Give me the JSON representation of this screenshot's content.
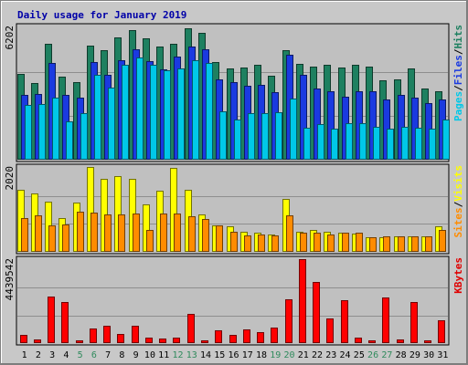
{
  "chart_data": {
    "type": "bar",
    "title": "Daily usage for January 2019",
    "categories": [
      "1",
      "2",
      "3",
      "4",
      "5",
      "6",
      "7",
      "8",
      "9",
      "10",
      "11",
      "12",
      "13",
      "14",
      "15",
      "16",
      "17",
      "18",
      "19",
      "20",
      "21",
      "22",
      "23",
      "24",
      "25",
      "26",
      "27",
      "28",
      "29",
      "30",
      "31"
    ],
    "weekend_days": [
      5,
      6,
      12,
      13,
      19,
      20,
      26,
      27
    ],
    "panels": [
      {
        "max_label": "6202",
        "ylim": [
          0,
          6202
        ],
        "legend": [
          "Pages",
          "/",
          "Files",
          "/",
          "Hits"
        ],
        "legend_colors": [
          "#00c8e8",
          "#000000",
          "#1a3ae0",
          "#000000",
          "#1e8060"
        ],
        "series": [
          {
            "name": "Hits",
            "color": "#1e8060",
            "values": [
              4000,
              3550,
              5400,
              3850,
              3600,
              5300,
              5100,
              5700,
              6050,
              5650,
              5250,
              5400,
              6120,
              5900,
              4550,
              4250,
              4300,
              4400,
              3900,
              5100,
              4450,
              4350,
              4400,
              4300,
              4400,
              4350,
              3700,
              3750,
              4250,
              3300,
              3200
            ]
          },
          {
            "name": "Files",
            "color": "#1a3ae0",
            "values": [
              3000,
              3050,
              4500,
              3000,
              2900,
              4550,
              3950,
              4650,
              5150,
              4600,
              4200,
              4800,
              5250,
              5150,
              3750,
              3600,
              3450,
              3500,
              3150,
              4900,
              3950,
              3300,
              3200,
              2950,
              3200,
              3200,
              2800,
              3000,
              2900,
              2650,
              2800
            ]
          },
          {
            "name": "Pages",
            "color": "#00c8e8",
            "values": [
              2550,
              2600,
              2900,
              1800,
              2150,
              3950,
              3350,
              4400,
              4750,
              4400,
              4150,
              4250,
              4650,
              4500,
              2250,
              1850,
              2150,
              2150,
              2200,
              2850,
              1500,
              1650,
              1450,
              1700,
              1700,
              1550,
              1450,
              1550,
              1500,
              1450,
              1850
            ]
          }
        ]
      },
      {
        "max_label": "2020",
        "ylim": [
          0,
          2020
        ],
        "legend": [
          "Sites",
          "/",
          "Visits"
        ],
        "legend_colors": [
          "#ff8c00",
          "#000000",
          "#ffff00"
        ],
        "series": [
          {
            "name": "Visits",
            "color": "#ffff00",
            "values": [
              1470,
              1380,
              1190,
              800,
              1170,
              2020,
              1740,
              1810,
              1740,
              1130,
              1450,
              2000,
              1480,
              890,
              620,
              600,
              480,
              460,
              420,
              1260,
              480,
              530,
              470,
              460,
              440,
              350,
              350,
              360,
              360,
              370,
              600
            ]
          },
          {
            "name": "Sites",
            "color": "#ff8c00",
            "values": [
              800,
              860,
              640,
              660,
              960,
              930,
              890,
              890,
              920,
              530,
              920,
              920,
              840,
              780,
              620,
              470,
              390,
              410,
              400,
              870,
              460,
              450,
              420,
              450,
              450,
              350,
              360,
              360,
              360,
              370,
              520
            ]
          }
        ]
      },
      {
        "max_label": "4439542",
        "ylim": [
          0,
          4439542
        ],
        "legend": [
          "KBytes"
        ],
        "legend_colors": [
          "#e00000"
        ],
        "series": [
          {
            "name": "KBytes",
            "color": "#ff0000",
            "values": [
              420000,
              170000,
              2450000,
              2160000,
              150000,
              790000,
              920000,
              460000,
              900000,
              270000,
              230000,
              290000,
              1560000,
              150000,
              690000,
              430000,
              740000,
              560000,
              810000,
              2320000,
              4439542,
              3230000,
              1320000,
              2250000,
              270000,
              140000,
              2420000,
              170000,
              2170000,
              140000,
              1210000
            ]
          }
        ]
      }
    ]
  }
}
